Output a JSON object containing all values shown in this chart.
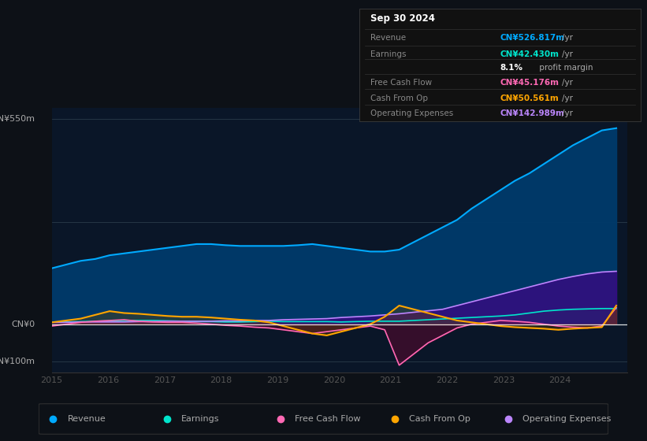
{
  "bg_color": "#0d1117",
  "chart_bg": "#0a1628",
  "title_box": {
    "date": "Sep 30 2024",
    "rows": [
      {
        "label": "Revenue",
        "value": "CN¥526.817m",
        "unit": "/yr",
        "color": "#00aaff"
      },
      {
        "label": "Earnings",
        "value": "CN¥42.430m",
        "unit": "/yr",
        "color": "#00e5cc"
      },
      {
        "label": "",
        "value": "8.1%",
        "unit": " profit margin",
        "color": "#ffffff"
      },
      {
        "label": "Free Cash Flow",
        "value": "CN¥45.176m",
        "unit": "/yr",
        "color": "#ff69b4"
      },
      {
        "label": "Cash From Op",
        "value": "CN¥50.561m",
        "unit": "/yr",
        "color": "#ffa500"
      },
      {
        "label": "Operating Expenses",
        "value": "CN¥142.989m",
        "unit": "/yr",
        "color": "#bb86fc"
      }
    ]
  },
  "ylabel_top": "CN¥550m",
  "ylabel_zero": "CN¥0",
  "ylabel_neg": "-CN¥100m",
  "xlabels": [
    "2015",
    "2016",
    "2017",
    "2018",
    "2019",
    "2020",
    "2021",
    "2022",
    "2023",
    "2024"
  ],
  "xticks": [
    2015,
    2016,
    2017,
    2018,
    2019,
    2020,
    2021,
    2022,
    2023,
    2024
  ],
  "legend": [
    {
      "label": "Revenue",
      "color": "#00aaff"
    },
    {
      "label": "Earnings",
      "color": "#00e5cc"
    },
    {
      "label": "Free Cash Flow",
      "color": "#ff69b4"
    },
    {
      "label": "Cash From Op",
      "color": "#ffa500"
    },
    {
      "label": "Operating Expenses",
      "color": "#bb86fc"
    }
  ],
  "revenue": [
    150,
    160,
    170,
    175,
    185,
    190,
    195,
    200,
    205,
    210,
    215,
    215,
    212,
    210,
    210,
    210,
    210,
    212,
    215,
    210,
    205,
    200,
    195,
    195,
    200,
    220,
    240,
    260,
    280,
    310,
    335,
    360,
    385,
    405,
    430,
    455,
    480,
    500,
    520,
    526
  ],
  "earnings": [
    5,
    6,
    7,
    8,
    9,
    10,
    10,
    10,
    9,
    8,
    7,
    7,
    6,
    6,
    7,
    8,
    7,
    7,
    7,
    7,
    6,
    7,
    8,
    8,
    8,
    10,
    12,
    14,
    16,
    18,
    20,
    22,
    25,
    30,
    35,
    38,
    40,
    41,
    42,
    42
  ],
  "free_cash_flow": [
    -5,
    0,
    5,
    8,
    10,
    12,
    8,
    6,
    5,
    5,
    3,
    0,
    -3,
    -5,
    -8,
    -10,
    -15,
    -20,
    -25,
    -20,
    -15,
    -10,
    -5,
    -15,
    -110,
    -80,
    -50,
    -30,
    -10,
    0,
    5,
    10,
    8,
    5,
    0,
    -5,
    -8,
    -10,
    -5,
    45
  ],
  "cash_from_op": [
    5,
    10,
    15,
    25,
    35,
    30,
    28,
    25,
    22,
    20,
    20,
    18,
    15,
    12,
    10,
    5,
    -5,
    -15,
    -25,
    -30,
    -20,
    -10,
    0,
    20,
    50,
    40,
    30,
    20,
    10,
    5,
    0,
    -5,
    -8,
    -10,
    -12,
    -15,
    -12,
    -10,
    -8,
    50
  ],
  "op_expenses": [
    5,
    5,
    6,
    6,
    6,
    6,
    7,
    7,
    8,
    8,
    8,
    8,
    9,
    9,
    10,
    10,
    12,
    13,
    14,
    15,
    18,
    20,
    22,
    25,
    28,
    32,
    36,
    40,
    50,
    60,
    70,
    80,
    90,
    100,
    110,
    120,
    128,
    135,
    140,
    142
  ],
  "xlim": [
    2015,
    2025.2
  ],
  "ylim": [
    -130,
    580
  ],
  "hlines": [
    550,
    275,
    0,
    -100
  ],
  "zero_y": 0
}
